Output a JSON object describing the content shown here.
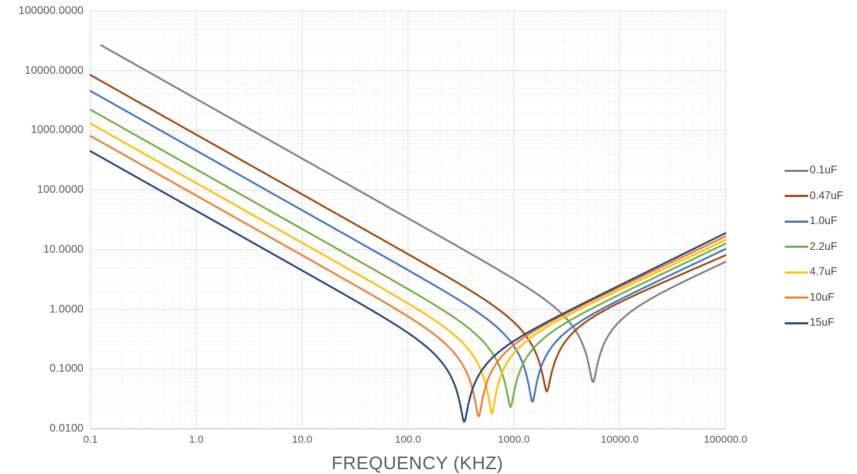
{
  "chart_data": {
    "type": "line",
    "description": "Capacitor impedance vs frequency curves (log-log): each curve falls at -1 slope (capacitive), dips to its ESR at self-resonance, then rises (inductive).",
    "x_axis": {
      "title": "FREQUENCY (KHZ)",
      "scale": "log",
      "min": 0.1,
      "max": 100000,
      "tick_labels": [
        "0.1",
        "1.0",
        "10.0",
        "100.0",
        "1000.0",
        "10000.0",
        "100000.0"
      ]
    },
    "y_axis": {
      "scale": "log",
      "min": 0.01,
      "max": 100000,
      "tick_labels": [
        "100000.0000",
        "10000.0000",
        "1000.0000",
        "100.0000",
        "10.0000",
        "1.0000",
        "0.1000",
        "0.0100"
      ]
    },
    "grid": {
      "major": true,
      "minor": true
    },
    "legend_position": "right",
    "series": [
      {
        "name": "0.1uF",
        "color": "#7f7f7f",
        "f_start_khz": 0.126,
        "z_at_0p1khz_ohm": 33800,
        "resonance_khz": 5600,
        "esr_ohm": 0.06,
        "z_at_100000khz_ohm": 6.3
      },
      {
        "name": "0.47uF",
        "color": "#9e480e",
        "f_start_khz": 0.1,
        "z_at_0p1khz_ohm": 8500,
        "resonance_khz": 2050,
        "esr_ohm": 0.042,
        "z_at_100000khz_ohm": 8.1
      },
      {
        "name": "1.0uF",
        "color": "#4472c4",
        "f_start_khz": 0.1,
        "z_at_0p1khz_ohm": 4600,
        "resonance_khz": 1500,
        "esr_ohm": 0.028,
        "z_at_100000khz_ohm": 10.3
      },
      {
        "name": "2.2uF",
        "color": "#70ad47",
        "f_start_khz": 0.1,
        "z_at_0p1khz_ohm": 2230,
        "resonance_khz": 930,
        "esr_ohm": 0.023,
        "z_at_100000khz_ohm": 12.7
      },
      {
        "name": "4.7uF",
        "color": "#ffc000",
        "f_start_khz": 0.1,
        "z_at_0p1khz_ohm": 1310,
        "resonance_khz": 620,
        "esr_ohm": 0.018,
        "z_at_100000khz_ohm": 14.6
      },
      {
        "name": "10uF",
        "color": "#ed7d31",
        "f_start_khz": 0.1,
        "z_at_0p1khz_ohm": 810,
        "resonance_khz": 465,
        "esr_ohm": 0.016,
        "z_at_100000khz_ohm": 16.8
      },
      {
        "name": "15uF",
        "color": "#264478",
        "f_start_khz": 0.1,
        "z_at_0p1khz_ohm": 450,
        "resonance_khz": 340,
        "esr_ohm": 0.013,
        "z_at_100000khz_ohm": 19.0
      }
    ]
  },
  "colors": {
    "minor_grid": "#f2f2f2",
    "major_grid": "#d9d9d9",
    "plot_border": "#d6d6d6",
    "axis_line": "#bfbfbf",
    "tick_text": "#595959",
    "legend_text": "#404040"
  }
}
